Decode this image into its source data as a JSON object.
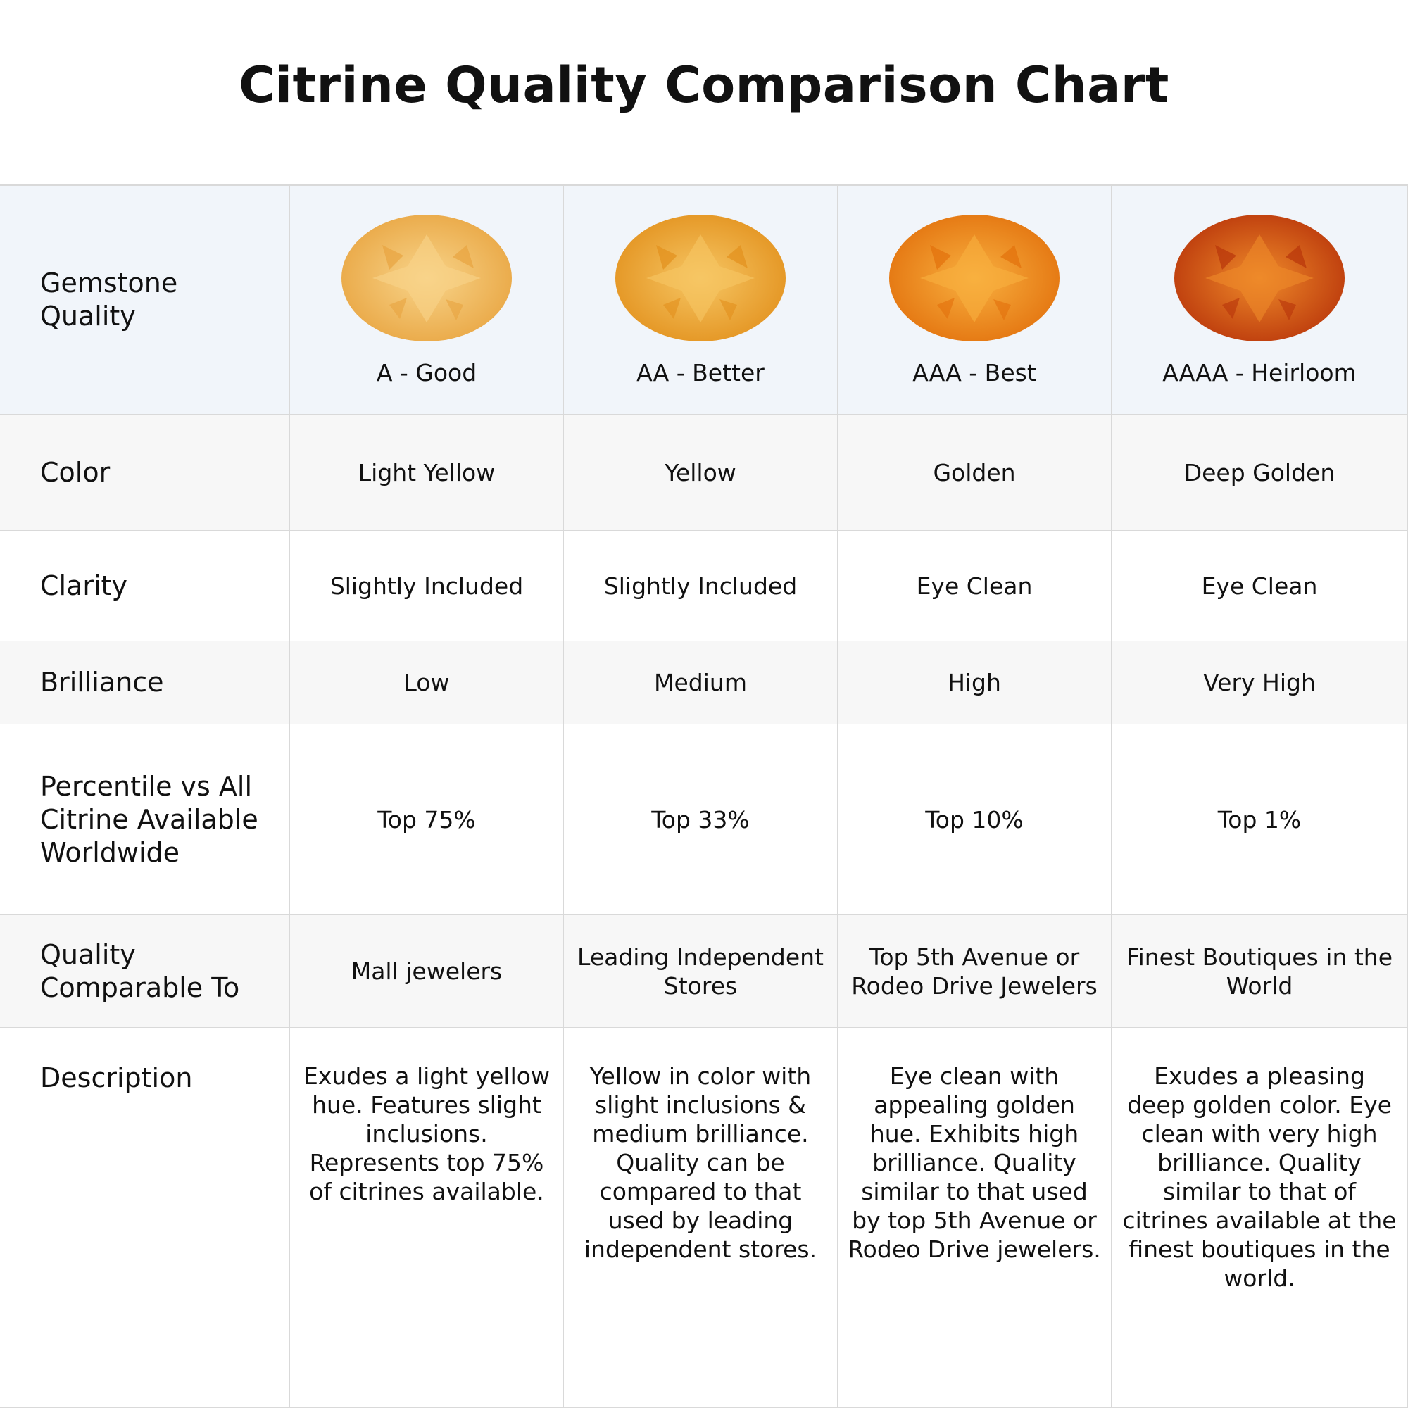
{
  "title": "Citrine Quality Comparison Chart",
  "table": {
    "header": [
      "Gemstone Quality",
      "A - Good",
      "AA - Better",
      "AAA - Best",
      "AAAA - Heirloom"
    ],
    "rows": [
      [
        "Color",
        "Light Yellow",
        "Yellow",
        "Golden",
        "Deep Golden"
      ],
      [
        "Clarity",
        "Slightly Included",
        "Slightly Included",
        "Eye Clean",
        "Eye Clean"
      ],
      [
        "Brilliance",
        "Low",
        "Medium",
        "High",
        "Very High"
      ],
      [
        "Percentile vs All Citrine Available Worldwide",
        "Top 75%",
        "Top 33%",
        "Top 10%",
        "Top 1%"
      ],
      [
        "Quality Comparable To",
        "Mall jewelers",
        "Leading Independent Stores",
        "Top 5th Avenue or Rodeo Drive Jewelers",
        "Finest Boutiques in the World"
      ],
      [
        "Description",
        "Exudes a light yellow hue. Features slight inclusions. Represents top 75% of citrines available.",
        "Yellow in color with slight inclusions & medium brilliance. Quality can be compared to that used by leading independent stores.",
        "Eye clean with appealing golden hue. Exhibits high brilliance. Quality similar to that used by top 5th Avenue or Rodeo Drive jewelers.",
        "Exudes a pleasing deep golden color. Eye clean with very high brilliance. Quality similar to that of citrines available at the finest boutiques in the world."
      ]
    ]
  }
}
